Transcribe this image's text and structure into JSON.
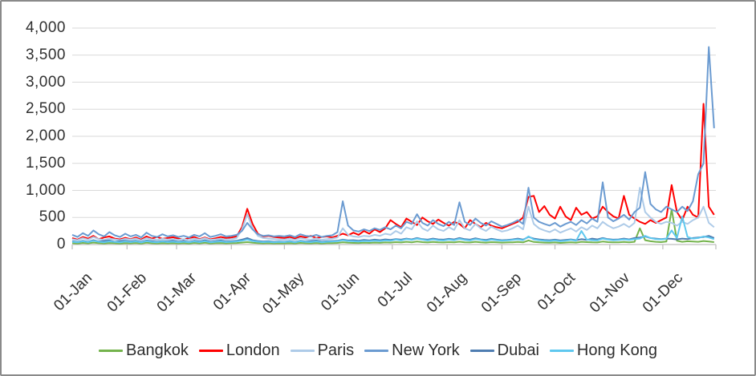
{
  "chart_data": {
    "type": "line",
    "title": "",
    "xlabel": "",
    "ylabel": "",
    "ylim": [
      0,
      4000
    ],
    "y_tick_interval": 500,
    "y_tick_labels": [
      "4,000",
      "3,500",
      "3,000",
      "2,500",
      "2,000",
      "1,500",
      "1,000",
      "500",
      "0"
    ],
    "x_unit": "day_of_year",
    "x_range": [
      1,
      365
    ],
    "x_tick_days": [
      1,
      32,
      60,
      91,
      121,
      152,
      182,
      213,
      244,
      274,
      305,
      335,
      365
    ],
    "x_tick_labels": [
      "01-Jan",
      "01-Feb",
      "01-Mar",
      "01-Apr",
      "01-May",
      "01-Jun",
      "01-Jul",
      "01-Aug",
      "01-Sep",
      "01-Oct",
      "01-Nov",
      "01-Dec"
    ],
    "grid": "horizontal",
    "legend_position": "bottom",
    "x_days": [
      1,
      4,
      7,
      10,
      13,
      16,
      19,
      22,
      25,
      28,
      31,
      34,
      37,
      40,
      43,
      46,
      49,
      52,
      55,
      58,
      61,
      64,
      67,
      70,
      73,
      76,
      79,
      82,
      85,
      88,
      91,
      94,
      97,
      100,
      103,
      106,
      109,
      112,
      115,
      118,
      121,
      124,
      127,
      130,
      133,
      136,
      139,
      142,
      145,
      148,
      151,
      154,
      157,
      160,
      163,
      166,
      169,
      172,
      175,
      178,
      181,
      184,
      187,
      190,
      193,
      196,
      199,
      202,
      205,
      208,
      211,
      214,
      217,
      220,
      223,
      226,
      229,
      232,
      235,
      238,
      241,
      244,
      247,
      250,
      253,
      256,
      259,
      262,
      265,
      268,
      271,
      274,
      277,
      280,
      283,
      286,
      289,
      292,
      295,
      298,
      301,
      304,
      307,
      310,
      313,
      316,
      319,
      322,
      325,
      328,
      331,
      334,
      337,
      340,
      343,
      346,
      349,
      352,
      355,
      358,
      361,
      364
    ],
    "series": [
      {
        "name": "Bangkok",
        "color": "#74B34C",
        "values": [
          25,
          18,
          30,
          22,
          35,
          25,
          20,
          28,
          24,
          18,
          26,
          22,
          28,
          18,
          32,
          24,
          20,
          27,
          22,
          25,
          20,
          26,
          18,
          30,
          22,
          32,
          20,
          25,
          28,
          22,
          25,
          28,
          35,
          45,
          32,
          26,
          22,
          25,
          20,
          24,
          22,
          27,
          20,
          30,
          24,
          22,
          28,
          20,
          25,
          27,
          30,
          40,
          32,
          30,
          28,
          32,
          30,
          35,
          31,
          38,
          35,
          45,
          38,
          50,
          42,
          55,
          45,
          38,
          48,
          40,
          38,
          45,
          40,
          52,
          42,
          38,
          50,
          42,
          35,
          45,
          40,
          35,
          38,
          42,
          48,
          40,
          75,
          48,
          40,
          35,
          33,
          38,
          30,
          35,
          42,
          35,
          50,
          45,
          40,
          38,
          55,
          45,
          40,
          42,
          48,
          42,
          50,
          300,
          80,
          60,
          50,
          45,
          55,
          650,
          70,
          50,
          60,
          55,
          50,
          65,
          55,
          45
        ]
      },
      {
        "name": "London",
        "color": "#FE0000",
        "values": [
          120,
          90,
          140,
          110,
          160,
          100,
          130,
          150,
          110,
          95,
          125,
          100,
          130,
          90,
          150,
          110,
          140,
          105,
          120,
          135,
          110,
          90,
          120,
          140,
          100,
          130,
          95,
          115,
          140,
          120,
          130,
          150,
          320,
          660,
          380,
          200,
          150,
          160,
          140,
          130,
          120,
          140,
          110,
          150,
          130,
          160,
          120,
          140,
          150,
          130,
          160,
          200,
          170,
          220,
          180,
          250,
          200,
          280,
          230,
          300,
          450,
          380,
          320,
          480,
          420,
          360,
          500,
          430,
          380,
          460,
          400,
          350,
          420,
          380,
          300,
          450,
          380,
          320,
          400,
          350,
          320,
          300,
          340,
          380,
          420,
          500,
          880,
          900,
          600,
          710,
          550,
          480,
          700,
          520,
          450,
          680,
          550,
          600,
          480,
          520,
          700,
          600,
          520,
          480,
          900,
          550,
          480,
          420,
          380,
          450,
          400,
          450,
          500,
          1100,
          600,
          450,
          700,
          550,
          500,
          2600,
          700,
          550
        ]
      },
      {
        "name": "Paris",
        "color": "#AECBE8",
        "values": [
          100,
          80,
          120,
          90,
          140,
          100,
          85,
          110,
          95,
          80,
          105,
          90,
          110,
          75,
          120,
          95,
          85,
          105,
          90,
          100,
          85,
          100,
          80,
          110,
          90,
          120,
          85,
          95,
          110,
          90,
          100,
          120,
          280,
          560,
          300,
          160,
          120,
          110,
          100,
          95,
          90,
          110,
          85,
          120,
          100,
          90,
          115,
          85,
          100,
          110,
          130,
          300,
          180,
          150,
          140,
          160,
          150,
          180,
          160,
          200,
          180,
          250,
          200,
          320,
          280,
          430,
          300,
          250,
          350,
          280,
          250,
          320,
          270,
          450,
          300,
          260,
          380,
          300,
          250,
          330,
          280,
          240,
          260,
          300,
          350,
          280,
          700,
          380,
          300,
          260,
          230,
          280,
          220,
          260,
          300,
          240,
          320,
          270,
          350,
          300,
          420,
          350,
          300,
          330,
          380,
          320,
          400,
          1050,
          600,
          500,
          420,
          380,
          420,
          400,
          350,
          420,
          380,
          450,
          500,
          700,
          400,
          320
        ]
      },
      {
        "name": "New York",
        "color": "#6B9BD1",
        "values": [
          180,
          140,
          210,
          160,
          260,
          190,
          150,
          230,
          170,
          140,
          200,
          150,
          180,
          130,
          220,
          160,
          140,
          190,
          150,
          170,
          140,
          160,
          130,
          180,
          150,
          210,
          140,
          160,
          190,
          150,
          160,
          180,
          250,
          400,
          280,
          190,
          160,
          170,
          150,
          160,
          150,
          170,
          140,
          190,
          160,
          150,
          180,
          140,
          160,
          170,
          230,
          800,
          350,
          260,
          240,
          280,
          250,
          300,
          270,
          320,
          280,
          350,
          300,
          420,
          380,
          560,
          400,
          350,
          450,
          380,
          340,
          420,
          360,
          780,
          420,
          360,
          480,
          400,
          350,
          430,
          380,
          330,
          360,
          400,
          450,
          380,
          1050,
          500,
          420,
          380,
          350,
          400,
          330,
          380,
          420,
          360,
          450,
          390,
          480,
          420,
          1150,
          500,
          430,
          480,
          550,
          460,
          600,
          680,
          1340,
          750,
          650,
          600,
          700,
          650,
          600,
          700,
          620,
          800,
          1300,
          1500,
          3650,
          2150
        ]
      },
      {
        "name": "Dubai",
        "color": "#4E7DB1",
        "values": [
          60,
          45,
          70,
          50,
          80,
          55,
          65,
          75,
          50,
          60,
          70,
          55,
          70,
          45,
          75,
          60,
          50,
          65,
          55,
          70,
          50,
          65,
          45,
          70,
          55,
          80,
          50,
          60,
          75,
          55,
          60,
          70,
          90,
          120,
          80,
          65,
          55,
          60,
          50,
          55,
          50,
          65,
          45,
          70,
          55,
          60,
          75,
          50,
          60,
          65,
          70,
          90,
          75,
          80,
          70,
          85,
          75,
          90,
          80,
          95,
          85,
          100,
          90,
          110,
          95,
          120,
          100,
          90,
          110,
          95,
          90,
          105,
          95,
          120,
          100,
          90,
          115,
          95,
          85,
          105,
          90,
          80,
          85,
          95,
          110,
          90,
          140,
          110,
          95,
          85,
          80,
          90,
          75,
          85,
          95,
          80,
          100,
          85,
          110,
          95,
          120,
          100,
          90,
          95,
          110,
          95,
          120,
          130,
          150,
          120,
          110,
          100,
          110,
          105,
          95,
          110,
          100,
          120,
          130,
          140,
          160,
          120
        ]
      },
      {
        "name": "Hong Kong",
        "color": "#5FC8EF",
        "values": [
          50,
          40,
          60,
          45,
          70,
          50,
          42,
          58,
          48,
          40,
          55,
          45,
          58,
          38,
          62,
          48,
          42,
          55,
          45,
          52,
          42,
          52,
          40,
          58,
          45,
          62,
          42,
          50,
          58,
          45,
          50,
          58,
          70,
          90,
          65,
          52,
          45,
          50,
          42,
          48,
          45,
          55,
          40,
          60,
          48,
          45,
          58,
          42,
          50,
          55,
          60,
          80,
          65,
          60,
          55,
          65,
          60,
          70,
          62,
          75,
          70,
          90,
          75,
          100,
          85,
          110,
          90,
          75,
          95,
          80,
          75,
          90,
          80,
          105,
          85,
          75,
          100,
          85,
          70,
          90,
          80,
          70,
          75,
          85,
          95,
          80,
          150,
          95,
          80,
          70,
          65,
          75,
          60,
          70,
          85,
          70,
          250,
          90,
          80,
          75,
          110,
          90,
          80,
          85,
          95,
          85,
          100,
          110,
          160,
          120,
          100,
          95,
          105,
          260,
          120,
          520,
          140,
          110,
          120,
          150,
          130,
          100
        ]
      }
    ]
  },
  "style_colors": {
    "grid": "#D9D9D9",
    "axis": "#BFBFBF",
    "text": "#303030"
  }
}
